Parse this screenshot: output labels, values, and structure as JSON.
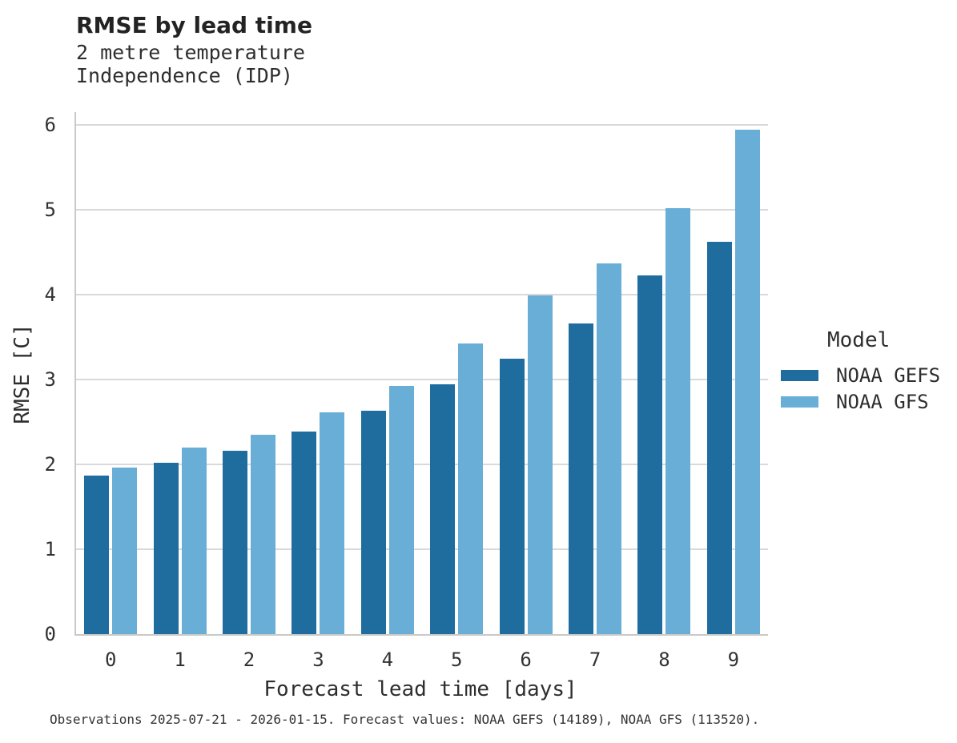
{
  "header": {
    "title": "RMSE by lead time",
    "subtitle_line1": "2 metre temperature",
    "subtitle_line2": "Independence (IDP)"
  },
  "chart_data": {
    "type": "bar",
    "title": "RMSE by lead time",
    "subtitle": [
      "2 metre temperature",
      "Independence (IDP)"
    ],
    "categories": [
      "0",
      "1",
      "2",
      "3",
      "4",
      "5",
      "6",
      "7",
      "8",
      "9"
    ],
    "series": [
      {
        "name": "NOAA GEFS",
        "color": "#1e6d9e",
        "values": [
          1.87,
          2.02,
          2.16,
          2.39,
          2.63,
          2.94,
          3.25,
          3.66,
          4.23,
          4.62
        ]
      },
      {
        "name": "NOAA GFS",
        "color": "#69aed6",
        "values": [
          1.96,
          2.2,
          2.35,
          2.61,
          2.92,
          3.42,
          3.99,
          4.37,
          5.02,
          5.94
        ]
      }
    ],
    "xlabel": "Forecast lead time [days]",
    "ylabel": "RMSE [C]",
    "ylim": [
      0,
      6.15
    ],
    "yticks": [
      0,
      1,
      2,
      3,
      4,
      5,
      6
    ],
    "grid": "horizontal-only",
    "legend_position": "right",
    "legend_title": "Model"
  },
  "legend": {
    "title": "Model",
    "entries": [
      "NOAA GEFS",
      "NOAA GFS"
    ]
  },
  "axes": {
    "xlabel": "Forecast lead time [days]",
    "ylabel": "RMSE [C]"
  },
  "footer": {
    "caption": "Observations 2025-07-21 - 2026-01-15. Forecast values: NOAA GEFS (14189), NOAA GFS (113520)."
  },
  "colors": {
    "series_dark": "#1e6d9e",
    "series_light": "#69aed6",
    "gridline": "#d9d9d9",
    "axis_spine": "#c9c9c9",
    "text": "#2e2e2e"
  }
}
